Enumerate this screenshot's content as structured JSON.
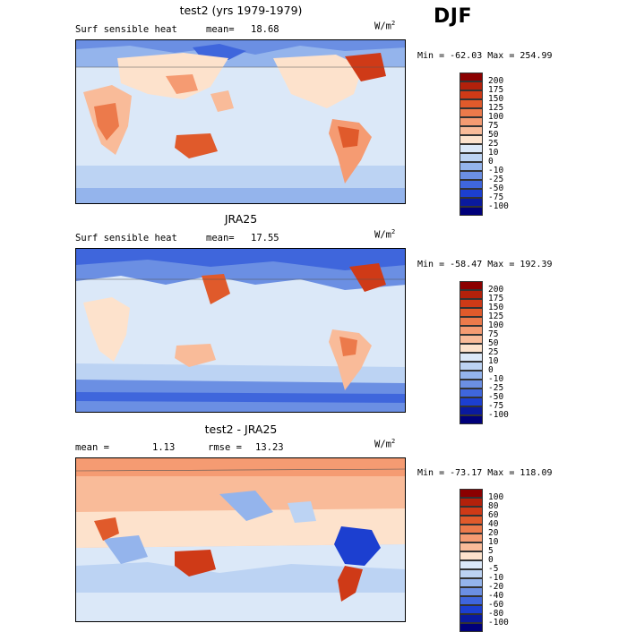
{
  "season": "DJF",
  "panels": [
    {
      "title": "test2 (yrs 1979-1979)",
      "left_label": "Surf sensible heat",
      "stat_label": "mean=",
      "stat_value": "18.68",
      "units": "W/m",
      "units_exp": "2",
      "minmax": "Min = -62.03 Max = 254.99",
      "colorbar_labels": [
        "200",
        "175",
        "150",
        "125",
        "100",
        "75",
        "50",
        "25",
        "10",
        "0",
        "-10",
        "-25",
        "-50",
        "-75",
        "-100"
      ],
      "colorbar_colors": [
        "#8b0000",
        "#b3210b",
        "#cf3a17",
        "#e05a2b",
        "#ec7a4b",
        "#f59b72",
        "#f9bb99",
        "#fde2cc",
        "#dbe8f8",
        "#bcd3f3",
        "#94b4ec",
        "#6b8fe3",
        "#3f66dc",
        "#1c3fd0",
        "#0a1a9e",
        "#00007a"
      ]
    },
    {
      "title": "JRA25",
      "left_label": "Surf sensible heat",
      "stat_label": "mean=",
      "stat_value": "17.55",
      "units": "W/m",
      "units_exp": "2",
      "minmax": "Min = -58.47 Max = 192.39",
      "colorbar_labels": [
        "200",
        "175",
        "150",
        "125",
        "100",
        "75",
        "50",
        "25",
        "10",
        "0",
        "-10",
        "-25",
        "-50",
        "-75",
        "-100"
      ],
      "colorbar_colors": [
        "#8b0000",
        "#b3210b",
        "#cf3a17",
        "#e05a2b",
        "#ec7a4b",
        "#f59b72",
        "#f9bb99",
        "#fde2cc",
        "#dbe8f8",
        "#bcd3f3",
        "#94b4ec",
        "#6b8fe3",
        "#3f66dc",
        "#1c3fd0",
        "#0a1a9e",
        "#00007a"
      ]
    },
    {
      "title": "test2 - JRA25",
      "left_label": "mean =",
      "left_value": "1.13",
      "stat_label": "rmse =",
      "stat_value": "13.23",
      "units": "W/m",
      "units_exp": "2",
      "minmax": "Min = -73.17 Max = 118.09",
      "colorbar_labels": [
        "100",
        "80",
        "60",
        "40",
        "20",
        "10",
        "5",
        "0",
        "-5",
        "-10",
        "-20",
        "-40",
        "-60",
        "-80",
        "-100"
      ],
      "colorbar_colors": [
        "#8b0000",
        "#b3210b",
        "#cf3a17",
        "#e05a2b",
        "#ec7a4b",
        "#f59b72",
        "#f9bb99",
        "#fde2cc",
        "#dbe8f8",
        "#bcd3f3",
        "#94b4ec",
        "#6b8fe3",
        "#3f66dc",
        "#1c3fd0",
        "#0a1a9e",
        "#00007a"
      ]
    }
  ]
}
